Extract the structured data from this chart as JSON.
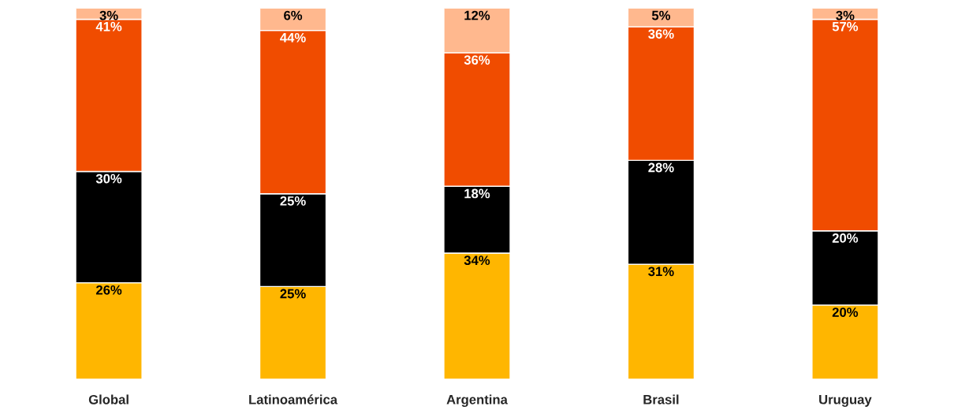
{
  "chart_data": {
    "type": "bar",
    "stacked": true,
    "grid": false,
    "legend": false,
    "categories": [
      "Global",
      "Latinoamérica",
      "Argentina",
      "Brasil",
      "Uruguay"
    ],
    "series": [
      {
        "color": "#ffb600",
        "values": [
          26,
          25,
          34,
          31,
          20
        ],
        "value_labels": [
          "26%",
          "25%",
          "34%",
          "31%",
          "20%"
        ]
      },
      {
        "color": "#000000",
        "values": [
          30,
          25,
          18,
          28,
          20
        ],
        "value_labels": [
          "30%",
          "25%",
          "18%",
          "28%",
          "20%"
        ]
      },
      {
        "color": "#f04c00",
        "values": [
          41,
          44,
          36,
          36,
          57
        ],
        "value_labels": [
          "41%",
          "44%",
          "36%",
          "36%",
          "57%"
        ]
      },
      {
        "color": "#ffb88e",
        "values": [
          3,
          6,
          12,
          5,
          3
        ],
        "value_labels": [
          "3%",
          "6%",
          "12%",
          "5%",
          "3%"
        ]
      }
    ]
  }
}
